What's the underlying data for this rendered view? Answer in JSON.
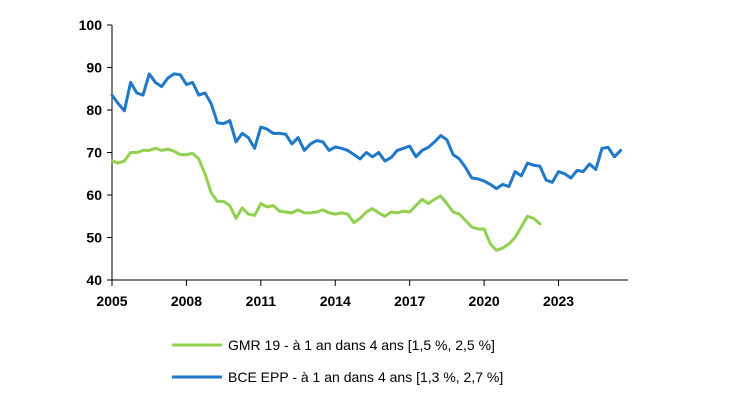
{
  "chart_data": {
    "type": "line",
    "title": "",
    "xlabel": "",
    "ylabel": "",
    "xlim": [
      2005,
      2025.8
    ],
    "ylim": [
      40,
      100
    ],
    "x_ticks": [
      2005,
      2008,
      2011,
      2014,
      2017,
      2020,
      2023
    ],
    "x_tick_labels": [
      "2005",
      "2008",
      "2011",
      "2014",
      "2017",
      "2020",
      "2023"
    ],
    "y_ticks": [
      40,
      50,
      60,
      70,
      80,
      90,
      100
    ],
    "y_tick_labels": [
      "40",
      "50",
      "60",
      "70",
      "80",
      "90",
      "100"
    ],
    "grid": false,
    "legend_position": "bottom",
    "series": [
      {
        "name": "GMR 19 - à 1 an dans 4 ans [1,5 %, 2,5 %]",
        "color": "#92D050",
        "points": [
          [
            2005.0,
            68.0
          ],
          [
            2005.25,
            67.5
          ],
          [
            2005.5,
            68.0
          ],
          [
            2005.75,
            70.0
          ],
          [
            2006.0,
            70.0
          ],
          [
            2006.25,
            70.5
          ],
          [
            2006.5,
            70.5
          ],
          [
            2006.75,
            71.0
          ],
          [
            2007.0,
            70.5
          ],
          [
            2007.25,
            70.8
          ],
          [
            2007.5,
            70.3
          ],
          [
            2007.75,
            69.5
          ],
          [
            2008.0,
            69.5
          ],
          [
            2008.25,
            69.8
          ],
          [
            2008.5,
            68.5
          ],
          [
            2008.75,
            65.0
          ],
          [
            2009.0,
            60.5
          ],
          [
            2009.25,
            58.5
          ],
          [
            2009.5,
            58.5
          ],
          [
            2009.75,
            57.5
          ],
          [
            2010.0,
            54.5
          ],
          [
            2010.25,
            57.0
          ],
          [
            2010.5,
            55.5
          ],
          [
            2010.75,
            55.2
          ],
          [
            2011.0,
            58.0
          ],
          [
            2011.25,
            57.2
          ],
          [
            2011.5,
            57.5
          ],
          [
            2011.75,
            56.2
          ],
          [
            2012.0,
            56.0
          ],
          [
            2012.25,
            55.8
          ],
          [
            2012.5,
            56.5
          ],
          [
            2012.75,
            55.8
          ],
          [
            2013.0,
            55.8
          ],
          [
            2013.25,
            56.0
          ],
          [
            2013.5,
            56.5
          ],
          [
            2013.75,
            55.8
          ],
          [
            2014.0,
            55.5
          ],
          [
            2014.25,
            55.8
          ],
          [
            2014.5,
            55.5
          ],
          [
            2014.75,
            53.5
          ],
          [
            2015.0,
            54.5
          ],
          [
            2015.25,
            56.0
          ],
          [
            2015.5,
            56.8
          ],
          [
            2015.75,
            55.8
          ],
          [
            2016.0,
            55.0
          ],
          [
            2016.25,
            56.0
          ],
          [
            2016.5,
            55.8
          ],
          [
            2016.75,
            56.2
          ],
          [
            2017.0,
            56.0
          ],
          [
            2017.25,
            57.5
          ],
          [
            2017.5,
            59.0
          ],
          [
            2017.75,
            58.0
          ],
          [
            2018.0,
            59.0
          ],
          [
            2018.25,
            59.8
          ],
          [
            2018.5,
            58.0
          ],
          [
            2018.75,
            56.0
          ],
          [
            2019.0,
            55.5
          ],
          [
            2019.25,
            54.0
          ],
          [
            2019.5,
            52.5
          ],
          [
            2019.75,
            52.0
          ],
          [
            2020.0,
            52.0
          ],
          [
            2020.25,
            48.5
          ],
          [
            2020.5,
            47.0
          ],
          [
            2020.75,
            47.5
          ],
          [
            2021.0,
            48.5
          ],
          [
            2021.25,
            50.0
          ],
          [
            2021.5,
            52.5
          ],
          [
            2021.75,
            55.0
          ],
          [
            2022.0,
            54.5
          ],
          [
            2022.25,
            53.2
          ]
        ]
      },
      {
        "name": "BCE EPP - à 1 an dans 4 ans [1,3 %, 2,7 %]",
        "color": "#1F78C8",
        "points": [
          [
            2005.0,
            83.5
          ],
          [
            2005.25,
            81.5
          ],
          [
            2005.5,
            79.8
          ],
          [
            2005.75,
            86.5
          ],
          [
            2006.0,
            84.0
          ],
          [
            2006.25,
            83.5
          ],
          [
            2006.5,
            88.5
          ],
          [
            2006.75,
            86.5
          ],
          [
            2007.0,
            85.5
          ],
          [
            2007.25,
            87.5
          ],
          [
            2007.5,
            88.5
          ],
          [
            2007.75,
            88.3
          ],
          [
            2008.0,
            86.0
          ],
          [
            2008.25,
            86.5
          ],
          [
            2008.5,
            83.5
          ],
          [
            2008.75,
            84.0
          ],
          [
            2009.0,
            81.5
          ],
          [
            2009.25,
            77.0
          ],
          [
            2009.5,
            76.8
          ],
          [
            2009.75,
            77.5
          ],
          [
            2010.0,
            72.5
          ],
          [
            2010.25,
            74.5
          ],
          [
            2010.5,
            73.5
          ],
          [
            2010.75,
            71.0
          ],
          [
            2011.0,
            76.0
          ],
          [
            2011.25,
            75.5
          ],
          [
            2011.5,
            74.5
          ],
          [
            2011.75,
            74.5
          ],
          [
            2012.0,
            74.3
          ],
          [
            2012.25,
            72.0
          ],
          [
            2012.5,
            73.5
          ],
          [
            2012.75,
            70.5
          ],
          [
            2013.0,
            72.0
          ],
          [
            2013.25,
            72.8
          ],
          [
            2013.5,
            72.5
          ],
          [
            2013.75,
            70.5
          ],
          [
            2014.0,
            71.3
          ],
          [
            2014.25,
            71.0
          ],
          [
            2014.5,
            70.5
          ],
          [
            2014.75,
            69.5
          ],
          [
            2015.0,
            68.5
          ],
          [
            2015.25,
            70.0
          ],
          [
            2015.5,
            69.0
          ],
          [
            2015.75,
            70.0
          ],
          [
            2016.0,
            68.0
          ],
          [
            2016.25,
            68.8
          ],
          [
            2016.5,
            70.5
          ],
          [
            2016.75,
            71.0
          ],
          [
            2017.0,
            71.5
          ],
          [
            2017.25,
            69.0
          ],
          [
            2017.5,
            70.5
          ],
          [
            2017.75,
            71.2
          ],
          [
            2018.0,
            72.5
          ],
          [
            2018.25,
            74.0
          ],
          [
            2018.5,
            73.0
          ],
          [
            2018.75,
            69.5
          ],
          [
            2019.0,
            68.5
          ],
          [
            2019.25,
            66.5
          ],
          [
            2019.5,
            64.0
          ],
          [
            2019.75,
            63.8
          ],
          [
            2020.0,
            63.3
          ],
          [
            2020.25,
            62.5
          ],
          [
            2020.5,
            61.5
          ],
          [
            2020.75,
            62.5
          ],
          [
            2021.0,
            62.0
          ],
          [
            2021.25,
            65.5
          ],
          [
            2021.5,
            64.5
          ],
          [
            2021.75,
            67.5
          ],
          [
            2022.0,
            67.0
          ],
          [
            2022.25,
            66.8
          ],
          [
            2022.5,
            63.5
          ],
          [
            2022.75,
            63.0
          ],
          [
            2023.0,
            65.5
          ],
          [
            2023.25,
            65.0
          ],
          [
            2023.5,
            64.0
          ],
          [
            2023.75,
            65.8
          ],
          [
            2024.0,
            65.5
          ],
          [
            2024.25,
            67.3
          ],
          [
            2024.5,
            66.0
          ],
          [
            2024.75,
            71.0
          ],
          [
            2025.0,
            71.2
          ],
          [
            2025.25,
            69.0
          ],
          [
            2025.5,
            70.5
          ]
        ]
      }
    ]
  }
}
